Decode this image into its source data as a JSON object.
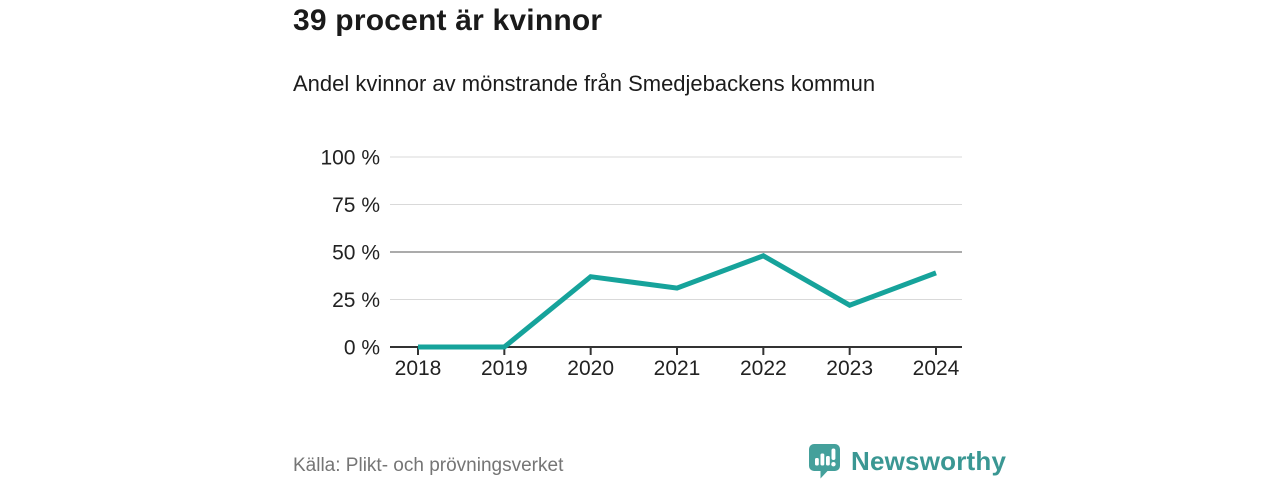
{
  "header": {
    "title": "39 procent är kvinnor",
    "subtitle": "Andel kvinnor av mönstrande från Smedjebackens kommun"
  },
  "chart_data": {
    "type": "line",
    "title": "39 procent är kvinnor",
    "subtitle": "Andel kvinnor av mönstrande från Smedjebackens kommun",
    "x": [
      "2018",
      "2019",
      "2020",
      "2021",
      "2022",
      "2023",
      "2024"
    ],
    "series": [
      {
        "name": "Andel kvinnor av mönstrande",
        "values": [
          0,
          0,
          37,
          31,
          48,
          22,
          39
        ]
      }
    ],
    "ylim": [
      0,
      100
    ],
    "yticks": [
      0,
      25,
      50,
      75,
      100
    ],
    "ytick_suffix": " %",
    "grid": true,
    "emphasized_gridline": 50,
    "legend_position": "none"
  },
  "footer": {
    "source": "Källa: Plikt- och prövningsverket",
    "logo_text": "Newsworthy"
  },
  "colors": {
    "accent_line": "#16a39b",
    "title_text": "#1a1a1a",
    "axis_text": "#222222",
    "grid_light": "#d9d9d9",
    "grid_dark": "#8f8f8f",
    "axis_line": "#333333",
    "muted_text": "#757575",
    "logo_teal": "#44a09b",
    "logo_wordmark": "#3a9793"
  }
}
